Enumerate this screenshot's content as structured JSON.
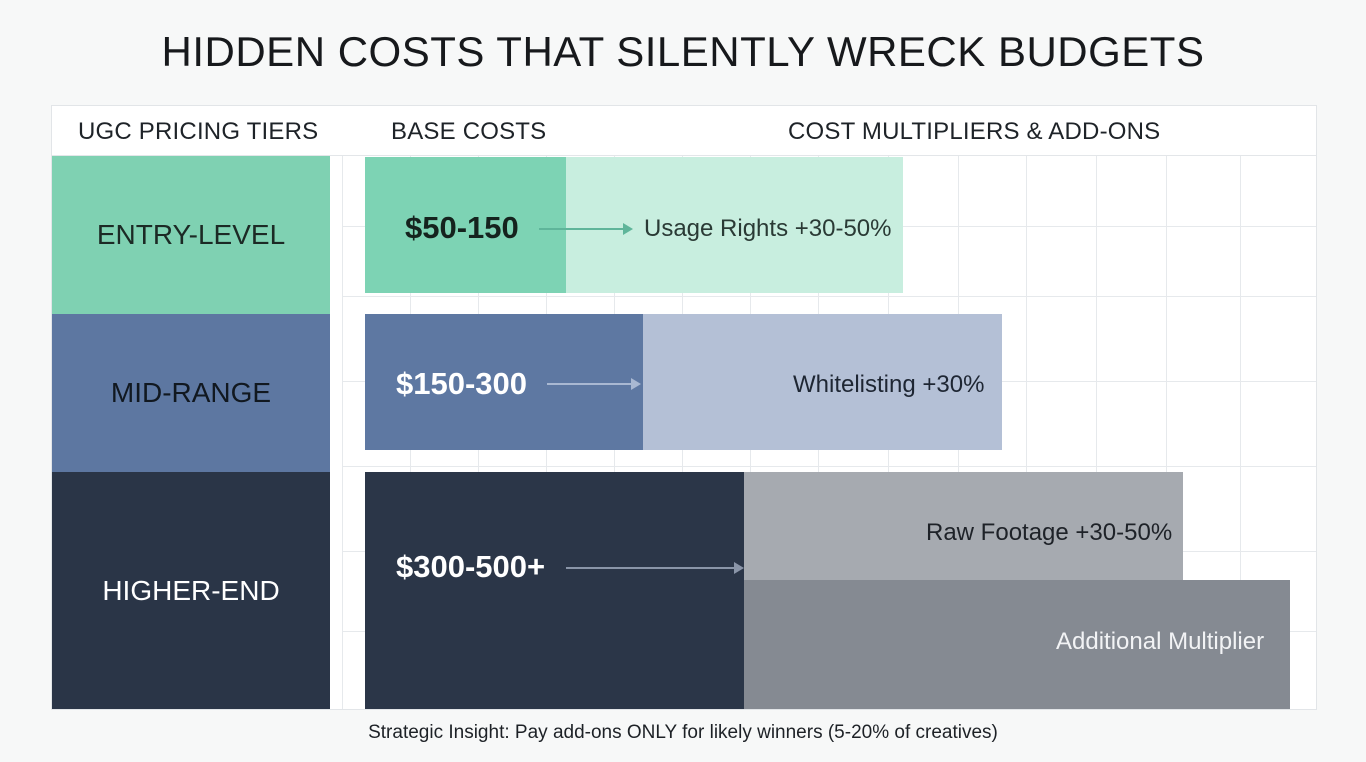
{
  "title": "HIDDEN COSTS THAT SILENTLY WRECK BUDGETS",
  "headers": {
    "tiers": "UGC PRICING TIERS",
    "base": "BASE COSTS",
    "multipliers": "COST MULTIPLIERS & ADD-ONS"
  },
  "tiers": [
    {
      "name": "ENTRY-LEVEL",
      "base_cost": "$50-150",
      "addons": [
        {
          "label": "Usage Rights +30-50%"
        }
      ],
      "colors": {
        "tier": "#7fd1b2",
        "base": "#7dd3b4",
        "addon": "#c8eedf",
        "text": "#1c2a25",
        "arrow": "#5fb59a"
      }
    },
    {
      "name": "MID-RANGE",
      "base_cost": "$150-300",
      "addons": [
        {
          "label": "Whitelisting +30%"
        }
      ],
      "colors": {
        "tier": "#5d77a1",
        "base": "#5e78a2",
        "addon": "#b4c0d6",
        "text": "#ffffff",
        "arrow": "#a9b8d2"
      }
    },
    {
      "name": "HIGHER-END",
      "base_cost": "$300-500+",
      "addons": [
        {
          "label": "Raw Footage +30-50%"
        },
        {
          "label": "Additional Multiplier"
        }
      ],
      "colors": {
        "tier": "#2a3547",
        "base": "#2b3648",
        "addon": "#a6aab0",
        "addon2": "#858a92",
        "text": "#ffffff",
        "arrow": "#8a95a8"
      }
    }
  ],
  "insight": {
    "lead": "Strategic Insight:",
    "text": " Pay add-ons ONLY for likely winners (5-20% of creatives)"
  }
}
